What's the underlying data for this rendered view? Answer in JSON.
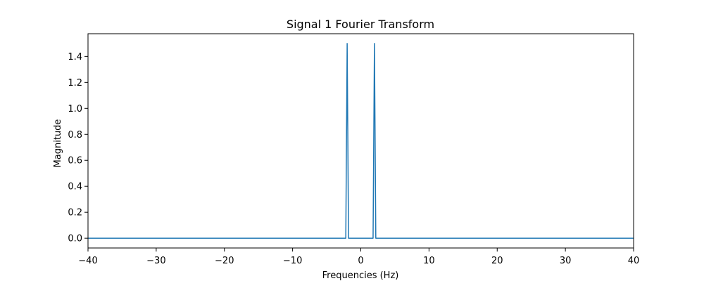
{
  "chart_data": {
    "type": "line",
    "title": "Signal 1 Fourier Transform",
    "xlabel": "Frequencies (Hz)",
    "ylabel": "Magnitude",
    "xlim": [
      -40,
      40
    ],
    "ylim": [
      -0.075,
      1.575
    ],
    "xticks": [
      -40,
      -30,
      -20,
      -10,
      0,
      10,
      20,
      30,
      40
    ],
    "xtick_labels": [
      "−40",
      "−30",
      "−20",
      "−10",
      "0",
      "10",
      "20",
      "30",
      "40"
    ],
    "yticks": [
      0.0,
      0.2,
      0.4,
      0.6,
      0.8,
      1.0,
      1.2,
      1.4
    ],
    "ytick_labels": [
      "0.0",
      "0.2",
      "0.4",
      "0.6",
      "0.8",
      "1.0",
      "1.2",
      "1.4"
    ],
    "grid": false,
    "legend": "none",
    "series": [
      {
        "color": "#1f77b4",
        "x": [
          -40,
          -2.2,
          -2,
          -1.8,
          1.8,
          2,
          2.2,
          40
        ],
        "y": [
          0,
          0,
          1.5,
          0,
          0,
          1.5,
          0,
          0
        ]
      }
    ]
  }
}
